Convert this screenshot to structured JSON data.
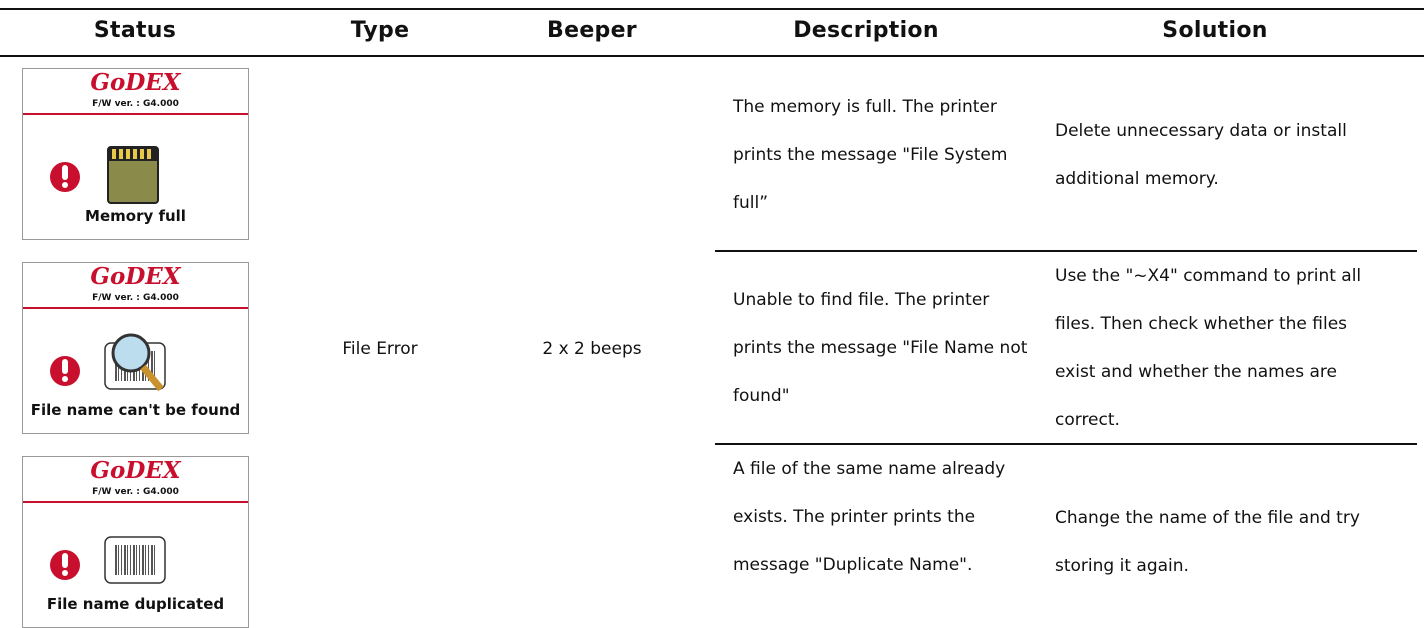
{
  "table": {
    "headers": [
      "Status",
      "Type",
      "Beeper",
      "Description",
      "Solution"
    ],
    "type": "File Error",
    "beeper": "2 x 2 beeps",
    "rows": [
      {
        "screen": {
          "brand": "GoDEX",
          "firmware": "F/W ver. : G4.000",
          "caption": "Memory full"
        },
        "description": "The memory is full. The printer prints the message \"File System full”",
        "solution": "Delete unnecessary data or install additional memory."
      },
      {
        "screen": {
          "brand": "GoDEX",
          "firmware": "F/W ver. : G4.000",
          "caption": "File name can't be found"
        },
        "description": "Unable to find file. The printer prints the message \"File Name not found\"",
        "solution": "Use the \"~X4\" command to print all files. Then check whether the files exist and whether the names are correct."
      },
      {
        "screen": {
          "brand": "GoDEX",
          "firmware": "F/W ver. : G4.000",
          "caption": "File name duplicated"
        },
        "description": "A file of the same name already exists. The printer prints the message \"Duplicate Name\".",
        "solution": "Change the name of the file and try storing it again."
      }
    ]
  }
}
